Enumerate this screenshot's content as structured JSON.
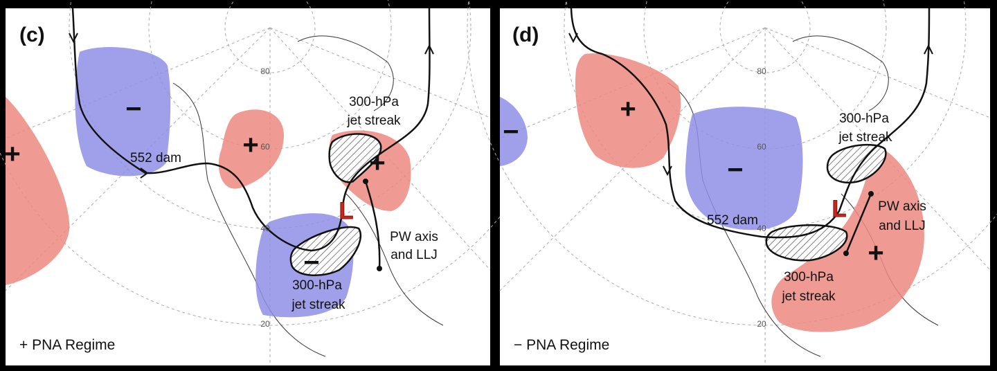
{
  "panels": [
    {
      "label": "(c)",
      "regime": "+ PNA Regime",
      "contour_label": "552 dam",
      "upper_jet": {
        "line1": "300-hPa",
        "line2": "jet streak"
      },
      "lower_jet": {
        "line1": "300-hPa",
        "line2": "jet streak"
      },
      "pw_label": {
        "line1": "PW axis",
        "line2": "and LLJ"
      },
      "low": "L",
      "anomaly_signs": [
        "+",
        "−",
        "+",
        "+",
        "−"
      ],
      "latitudes": [
        "80",
        "60",
        "40",
        "20"
      ]
    },
    {
      "label": "(d)",
      "regime": "− PNA Regime",
      "contour_label": "552 dam",
      "upper_jet": {
        "line1": "300-hPa",
        "line2": "jet streak"
      },
      "lower_jet": {
        "line1": "300-hPa",
        "line2": "jet streak"
      },
      "pw_label": {
        "line1": "PW axis",
        "line2": "and LLJ"
      },
      "low": "L",
      "anomaly_signs": [
        "−",
        "+",
        "−",
        "+"
      ],
      "latitudes": [
        "80",
        "60",
        "40",
        "20"
      ]
    }
  ]
}
